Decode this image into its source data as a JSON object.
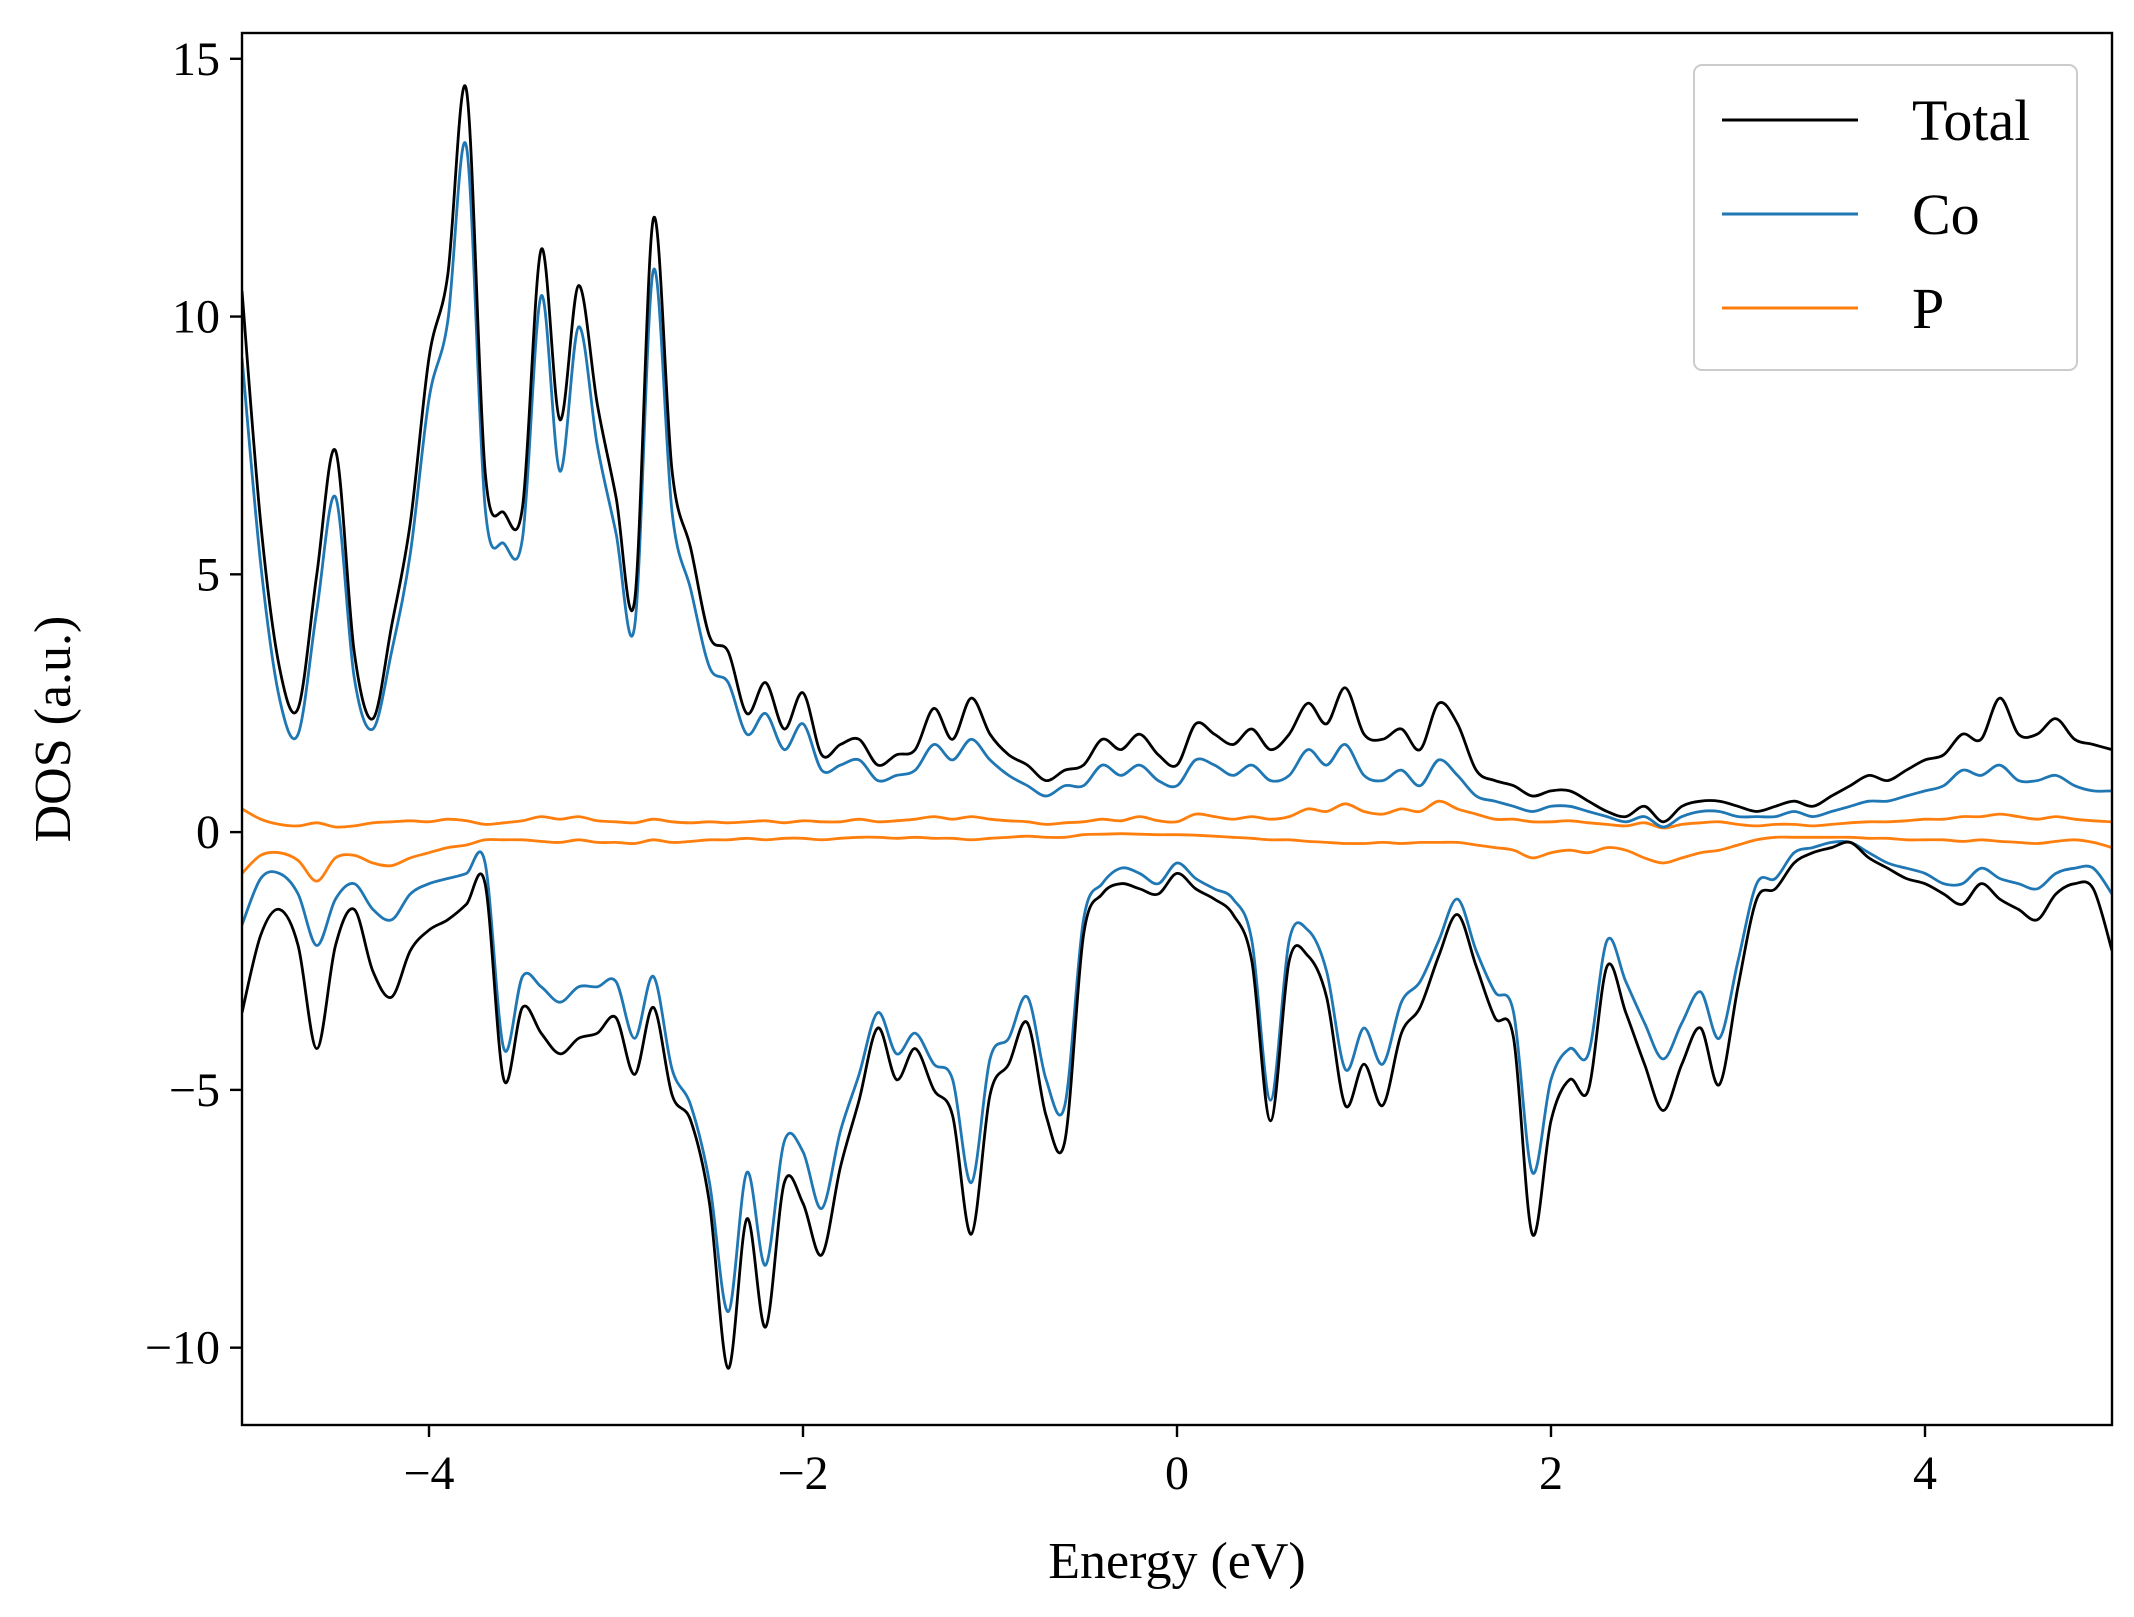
{
  "chart_data": {
    "type": "line",
    "xlabel": "Energy (eV)",
    "ylabel": "DOS (a.u.)",
    "xlim": [
      -5,
      5
    ],
    "ylim": [
      -11.5,
      15.5
    ],
    "xticks": [
      -4,
      -2,
      0,
      2,
      4
    ],
    "xtick_labels": [
      "−4",
      "−2",
      "0",
      "2",
      "4"
    ],
    "yticks": [
      -10,
      -5,
      0,
      5,
      10,
      15
    ],
    "ytick_labels": [
      "−10",
      "−5",
      "0",
      "5",
      "10",
      "15"
    ],
    "grid": false,
    "legend_position": "top-right",
    "legend": [
      {
        "label": "Total",
        "color": "#000000"
      },
      {
        "label": "Co",
        "color": "#1f77b4"
      },
      {
        "label": "P",
        "color": "#ff7f0e"
      }
    ],
    "x": [
      -5.0,
      -4.9,
      -4.8,
      -4.7,
      -4.6,
      -4.5,
      -4.4,
      -4.3,
      -4.2,
      -4.1,
      -4.0,
      -3.9,
      -3.8,
      -3.7,
      -3.6,
      -3.5,
      -3.4,
      -3.3,
      -3.2,
      -3.1,
      -3.0,
      -2.9,
      -2.8,
      -2.7,
      -2.6,
      -2.5,
      -2.4,
      -2.3,
      -2.2,
      -2.1,
      -2.0,
      -1.9,
      -1.8,
      -1.7,
      -1.6,
      -1.5,
      -1.4,
      -1.3,
      -1.2,
      -1.1,
      -1.0,
      -0.9,
      -0.8,
      -0.7,
      -0.6,
      -0.5,
      -0.4,
      -0.3,
      -0.2,
      -0.1,
      0.0,
      0.1,
      0.2,
      0.3,
      0.4,
      0.5,
      0.6,
      0.7,
      0.8,
      0.9,
      1.0,
      1.1,
      1.2,
      1.3,
      1.4,
      1.5,
      1.6,
      1.7,
      1.8,
      1.9,
      2.0,
      2.1,
      2.2,
      2.3,
      2.4,
      2.5,
      2.6,
      2.7,
      2.8,
      2.9,
      3.0,
      3.1,
      3.2,
      3.3,
      3.4,
      3.5,
      3.6,
      3.7,
      3.8,
      3.9,
      4.0,
      4.1,
      4.2,
      4.3,
      4.4,
      4.5,
      4.6,
      4.7,
      4.8,
      4.9,
      5.0
    ],
    "series": [
      {
        "name": "Total",
        "color": "#000000",
        "up": [
          10.5,
          6.0,
          3.2,
          2.4,
          5.0,
          7.4,
          3.5,
          2.2,
          4.0,
          6.0,
          9.2,
          10.8,
          14.4,
          7.0,
          6.2,
          6.3,
          11.3,
          8.0,
          10.6,
          8.3,
          6.5,
          4.5,
          11.9,
          7.0,
          5.5,
          3.8,
          3.5,
          2.3,
          2.9,
          2.0,
          2.7,
          1.5,
          1.7,
          1.8,
          1.3,
          1.5,
          1.6,
          2.4,
          1.8,
          2.6,
          1.9,
          1.5,
          1.3,
          1.0,
          1.2,
          1.3,
          1.8,
          1.6,
          1.9,
          1.5,
          1.3,
          2.1,
          1.9,
          1.7,
          2.0,
          1.6,
          1.9,
          2.5,
          2.1,
          2.8,
          1.9,
          1.8,
          2.0,
          1.6,
          2.5,
          2.1,
          1.2,
          1.0,
          0.9,
          0.7,
          0.8,
          0.8,
          0.6,
          0.4,
          0.3,
          0.5,
          0.2,
          0.5,
          0.6,
          0.6,
          0.5,
          0.4,
          0.5,
          0.6,
          0.5,
          0.7,
          0.9,
          1.1,
          1.0,
          1.2,
          1.4,
          1.5,
          1.9,
          1.8,
          2.6,
          1.9,
          1.9,
          2.2,
          1.8,
          1.7,
          1.6
        ],
        "down": [
          -3.5,
          -2.0,
          -1.5,
          -2.2,
          -4.2,
          -2.2,
          -1.5,
          -2.7,
          -3.2,
          -2.3,
          -1.9,
          -1.7,
          -1.4,
          -1.0,
          -4.8,
          -3.4,
          -3.9,
          -4.3,
          -4.0,
          -3.9,
          -3.6,
          -4.7,
          -3.4,
          -5.1,
          -5.6,
          -7.2,
          -10.4,
          -7.5,
          -9.6,
          -6.8,
          -7.2,
          -8.2,
          -6.5,
          -5.2,
          -3.8,
          -4.8,
          -4.2,
          -5.0,
          -5.5,
          -7.8,
          -5.1,
          -4.5,
          -3.7,
          -5.5,
          -6.0,
          -2.0,
          -1.2,
          -1.0,
          -1.1,
          -1.2,
          -0.8,
          -1.1,
          -1.3,
          -1.6,
          -2.5,
          -5.6,
          -2.5,
          -2.4,
          -3.2,
          -5.3,
          -4.5,
          -5.3,
          -3.9,
          -3.4,
          -2.4,
          -1.6,
          -2.6,
          -3.6,
          -4.0,
          -7.8,
          -5.6,
          -4.8,
          -5.0,
          -2.6,
          -3.5,
          -4.5,
          -5.4,
          -4.5,
          -3.8,
          -4.9,
          -3.0,
          -1.3,
          -1.1,
          -0.6,
          -0.4,
          -0.3,
          -0.2,
          -0.5,
          -0.7,
          -0.9,
          -1.0,
          -1.2,
          -1.4,
          -1.0,
          -1.3,
          -1.5,
          -1.7,
          -1.2,
          -1.0,
          -1.1,
          -2.3
        ]
      },
      {
        "name": "Co",
        "color": "#1f77b4",
        "up": [
          9.2,
          5.2,
          2.6,
          1.9,
          4.3,
          6.5,
          3.0,
          2.0,
          3.5,
          5.4,
          8.4,
          9.9,
          13.3,
          6.3,
          5.6,
          5.7,
          10.4,
          7.0,
          9.8,
          7.5,
          5.8,
          4.0,
          10.9,
          6.2,
          4.7,
          3.2,
          2.9,
          1.9,
          2.3,
          1.6,
          2.1,
          1.2,
          1.3,
          1.4,
          1.0,
          1.1,
          1.2,
          1.7,
          1.4,
          1.8,
          1.4,
          1.1,
          0.9,
          0.7,
          0.9,
          0.9,
          1.3,
          1.1,
          1.3,
          1.0,
          0.9,
          1.4,
          1.3,
          1.1,
          1.3,
          1.0,
          1.1,
          1.6,
          1.3,
          1.7,
          1.1,
          1.0,
          1.2,
          0.9,
          1.4,
          1.1,
          0.7,
          0.6,
          0.5,
          0.4,
          0.5,
          0.5,
          0.4,
          0.3,
          0.2,
          0.3,
          0.1,
          0.3,
          0.4,
          0.4,
          0.3,
          0.3,
          0.3,
          0.4,
          0.3,
          0.4,
          0.5,
          0.6,
          0.6,
          0.7,
          0.8,
          0.9,
          1.2,
          1.1,
          1.3,
          1.0,
          1.0,
          1.1,
          0.9,
          0.8,
          0.8
        ],
        "down": [
          -1.8,
          -0.9,
          -0.8,
          -1.2,
          -2.2,
          -1.3,
          -1.0,
          -1.5,
          -1.7,
          -1.2,
          -1.0,
          -0.9,
          -0.8,
          -0.6,
          -4.2,
          -2.8,
          -3.0,
          -3.3,
          -3.0,
          -3.0,
          -2.9,
          -4.0,
          -2.8,
          -4.6,
          -5.3,
          -6.8,
          -9.3,
          -6.6,
          -8.4,
          -6.0,
          -6.2,
          -7.3,
          -5.8,
          -4.7,
          -3.5,
          -4.3,
          -3.9,
          -4.5,
          -4.8,
          -6.8,
          -4.4,
          -4.0,
          -3.2,
          -4.8,
          -5.3,
          -1.7,
          -1.0,
          -0.7,
          -0.8,
          -1.0,
          -0.6,
          -0.9,
          -1.1,
          -1.3,
          -2.1,
          -5.2,
          -2.1,
          -1.9,
          -2.7,
          -4.6,
          -3.8,
          -4.5,
          -3.3,
          -2.9,
          -2.1,
          -1.3,
          -2.3,
          -3.1,
          -3.5,
          -6.6,
          -4.8,
          -4.2,
          -4.3,
          -2.1,
          -2.9,
          -3.7,
          -4.4,
          -3.7,
          -3.1,
          -4.0,
          -2.5,
          -1.0,
          -0.9,
          -0.4,
          -0.3,
          -0.2,
          -0.2,
          -0.4,
          -0.6,
          -0.7,
          -0.8,
          -1.0,
          -1.0,
          -0.7,
          -0.9,
          -1.0,
          -1.1,
          -0.8,
          -0.7,
          -0.7,
          -1.2
        ]
      },
      {
        "name": "P",
        "color": "#ff7f0e",
        "up": [
          0.45,
          0.25,
          0.15,
          0.12,
          0.18,
          0.1,
          0.12,
          0.18,
          0.2,
          0.22,
          0.2,
          0.25,
          0.22,
          0.15,
          0.18,
          0.22,
          0.3,
          0.25,
          0.3,
          0.22,
          0.2,
          0.18,
          0.25,
          0.2,
          0.18,
          0.2,
          0.18,
          0.2,
          0.22,
          0.18,
          0.22,
          0.2,
          0.2,
          0.25,
          0.2,
          0.22,
          0.25,
          0.3,
          0.25,
          0.3,
          0.25,
          0.22,
          0.2,
          0.15,
          0.18,
          0.2,
          0.25,
          0.22,
          0.3,
          0.22,
          0.2,
          0.35,
          0.3,
          0.25,
          0.3,
          0.25,
          0.3,
          0.45,
          0.4,
          0.55,
          0.4,
          0.35,
          0.45,
          0.4,
          0.6,
          0.45,
          0.35,
          0.25,
          0.25,
          0.2,
          0.2,
          0.22,
          0.18,
          0.15,
          0.12,
          0.18,
          0.08,
          0.15,
          0.18,
          0.2,
          0.15,
          0.12,
          0.15,
          0.15,
          0.12,
          0.15,
          0.18,
          0.2,
          0.2,
          0.22,
          0.25,
          0.25,
          0.3,
          0.3,
          0.35,
          0.3,
          0.25,
          0.3,
          0.25,
          0.22,
          0.2
        ],
        "down": [
          -0.8,
          -0.45,
          -0.4,
          -0.55,
          -0.95,
          -0.5,
          -0.45,
          -0.6,
          -0.65,
          -0.5,
          -0.4,
          -0.3,
          -0.25,
          -0.15,
          -0.15,
          -0.15,
          -0.18,
          -0.2,
          -0.15,
          -0.2,
          -0.2,
          -0.22,
          -0.15,
          -0.2,
          -0.18,
          -0.15,
          -0.15,
          -0.12,
          -0.15,
          -0.12,
          -0.12,
          -0.15,
          -0.12,
          -0.1,
          -0.1,
          -0.12,
          -0.1,
          -0.12,
          -0.12,
          -0.15,
          -0.12,
          -0.1,
          -0.08,
          -0.1,
          -0.1,
          -0.05,
          -0.04,
          -0.03,
          -0.04,
          -0.05,
          -0.05,
          -0.06,
          -0.08,
          -0.1,
          -0.12,
          -0.15,
          -0.15,
          -0.18,
          -0.2,
          -0.22,
          -0.22,
          -0.2,
          -0.22,
          -0.2,
          -0.2,
          -0.2,
          -0.25,
          -0.3,
          -0.35,
          -0.5,
          -0.4,
          -0.35,
          -0.4,
          -0.3,
          -0.35,
          -0.5,
          -0.6,
          -0.5,
          -0.4,
          -0.35,
          -0.25,
          -0.15,
          -0.1,
          -0.1,
          -0.1,
          -0.1,
          -0.1,
          -0.12,
          -0.12,
          -0.15,
          -0.15,
          -0.15,
          -0.18,
          -0.15,
          -0.18,
          -0.2,
          -0.22,
          -0.18,
          -0.15,
          -0.2,
          -0.3
        ]
      }
    ]
  }
}
